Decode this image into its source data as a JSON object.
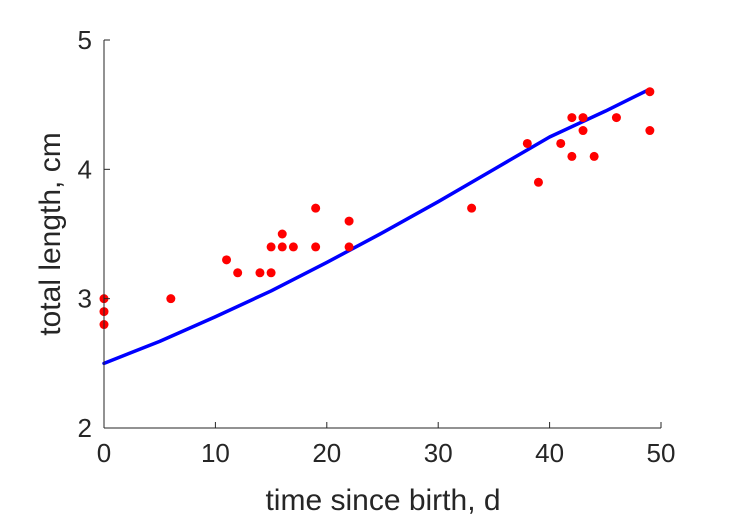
{
  "chart_data": {
    "type": "scatter",
    "title": "",
    "xlabel": "time since birth, d",
    "ylabel": "total length, cm",
    "xlim": [
      0,
      50
    ],
    "ylim": [
      2,
      5
    ],
    "xticks": [
      "0",
      "10",
      "20",
      "30",
      "40",
      "50"
    ],
    "yticks": [
      "2",
      "3",
      "4",
      "5"
    ],
    "grid": false,
    "legend": "none",
    "series": [
      {
        "type": "scatter",
        "color": "#ff0000",
        "x": [
          0,
          0,
          0,
          6,
          11,
          12,
          14,
          15,
          15,
          16,
          16,
          17,
          19,
          19,
          22,
          22,
          33,
          38,
          39,
          41,
          42,
          42,
          43,
          43,
          44,
          46,
          49,
          49
        ],
        "y": [
          3.0,
          2.9,
          2.8,
          3.0,
          3.3,
          3.2,
          3.2,
          3.4,
          3.2,
          3.5,
          3.4,
          3.4,
          3.7,
          3.4,
          3.6,
          3.4,
          3.7,
          4.2,
          3.9,
          4.2,
          4.4,
          4.1,
          4.4,
          4.3,
          4.1,
          4.4,
          4.6,
          4.3
        ]
      },
      {
        "type": "line",
        "color": "#0000ff",
        "x": [
          0,
          5,
          10,
          15,
          20,
          25,
          30,
          35,
          40,
          45,
          49
        ],
        "y": [
          2.5,
          2.67,
          2.86,
          3.06,
          3.28,
          3.51,
          3.75,
          4.0,
          4.25,
          4.45,
          4.62
        ]
      }
    ]
  }
}
